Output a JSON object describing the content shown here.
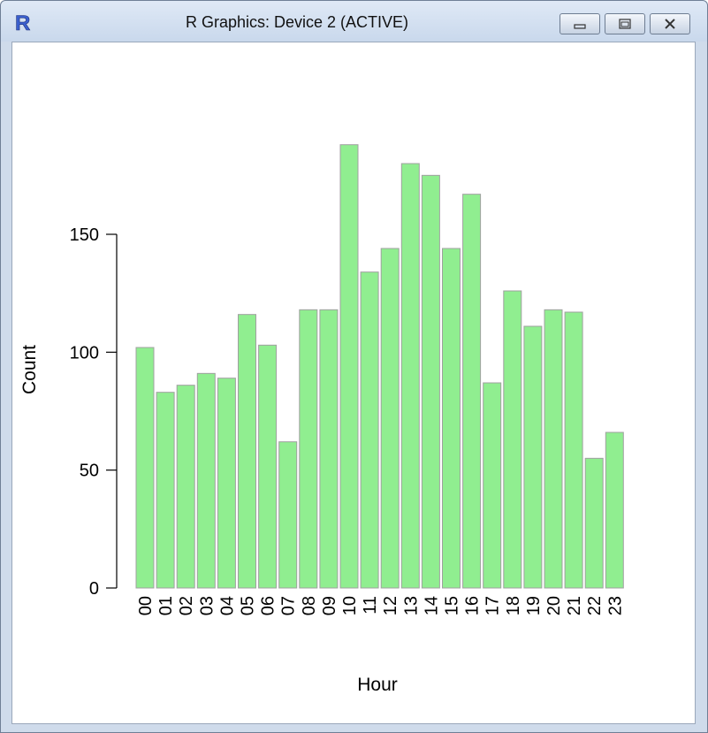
{
  "window": {
    "title": "R Graphics: Device 2 (ACTIVE)",
    "app_icon": "r-logo-icon",
    "controls": [
      "minimize-icon",
      "restore-icon",
      "close-icon"
    ]
  },
  "colors": {
    "bar_fill": "#90ee90",
    "bar_border": "#a0a0a0",
    "axis": "#000000"
  },
  "chart_data": {
    "type": "bar",
    "title": "",
    "xlabel": "Hour",
    "ylabel": "Count",
    "ylim": [
      0,
      190
    ],
    "yticks": [
      0,
      50,
      100,
      150
    ],
    "categories": [
      "00",
      "01",
      "02",
      "03",
      "04",
      "05",
      "06",
      "07",
      "08",
      "09",
      "10",
      "11",
      "12",
      "13",
      "14",
      "15",
      "16",
      "17",
      "18",
      "19",
      "20",
      "21",
      "22",
      "23"
    ],
    "values": [
      102,
      83,
      86,
      91,
      89,
      116,
      103,
      62,
      118,
      118,
      188,
      134,
      144,
      180,
      175,
      144,
      167,
      87,
      126,
      111,
      118,
      117,
      55,
      66
    ],
    "grid": false,
    "legend": "none"
  }
}
